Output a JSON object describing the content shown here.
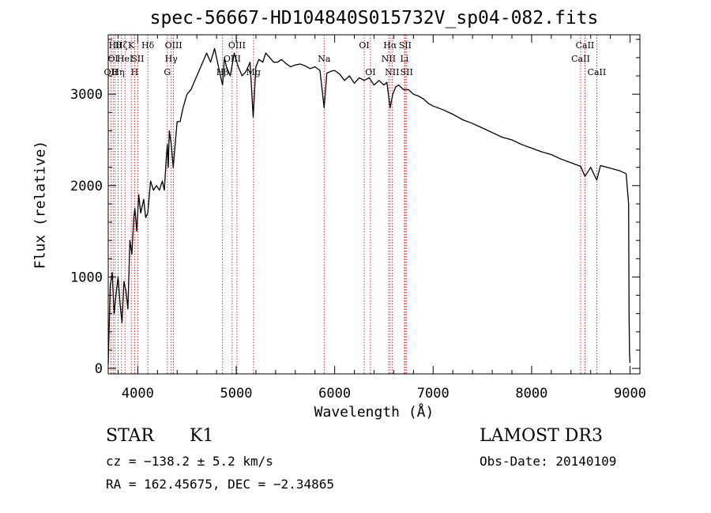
{
  "chart_data": {
    "type": "line",
    "title": "spec-56667-HD104840S015732V_sp04-082.fits",
    "xlabel": "Wavelength (Å)",
    "ylabel": "Flux (relative)",
    "xlim": [
      3700,
      9100
    ],
    "ylim": [
      -60,
      3650
    ],
    "x_ticks": [
      4000,
      5000,
      6000,
      7000,
      8000,
      9000
    ],
    "y_ticks": [
      0,
      1000,
      2000,
      3000
    ],
    "grid": false,
    "series": [
      {
        "x": [
          3700,
          3720,
          3740,
          3760,
          3780,
          3800,
          3820,
          3840,
          3860,
          3880,
          3900,
          3920,
          3940,
          3960,
          3970,
          3990,
          4010,
          4030,
          4060,
          4080,
          4102,
          4130,
          4160,
          4190,
          4220,
          4250,
          4270,
          4290,
          4300,
          4310,
          4320,
          4340,
          4360,
          4380,
          4400,
          4430,
          4460,
          4500,
          4540,
          4580,
          4620,
          4660,
          4700,
          4740,
          4780,
          4820,
          4861,
          4880,
          4900,
          4940,
          4980,
          5020,
          5060,
          5100,
          5140,
          5172,
          5200,
          5230,
          5270,
          5300,
          5340,
          5380,
          5420,
          5460,
          5500,
          5550,
          5600,
          5650,
          5700,
          5750,
          5800,
          5850,
          5893,
          5920,
          5960,
          6000,
          6050,
          6100,
          6150,
          6200,
          6250,
          6300,
          6350,
          6400,
          6450,
          6500,
          6530,
          6563,
          6590,
          6620,
          6650,
          6700,
          6750,
          6800,
          6850,
          6900,
          6950,
          7000,
          7100,
          7200,
          7300,
          7400,
          7500,
          7600,
          7700,
          7800,
          7900,
          8000,
          8100,
          8200,
          8300,
          8400,
          8498,
          8542,
          8600,
          8662,
          8700,
          8800,
          8900,
          8960,
          8985,
          8990,
          8995,
          9000
        ],
        "y": [
          50,
          900,
          1050,
          600,
          820,
          1000,
          700,
          500,
          950,
          850,
          650,
          1400,
          1250,
          1650,
          1750,
          1500,
          1900,
          1700,
          1850,
          1650,
          1700,
          2050,
          1950,
          2000,
          1950,
          2050,
          1950,
          2300,
          2450,
          2200,
          2600,
          2450,
          2200,
          2450,
          2700,
          2700,
          2850,
          3000,
          3050,
          3150,
          3250,
          3350,
          3450,
          3350,
          3500,
          3300,
          3100,
          3400,
          3300,
          3200,
          3450,
          3300,
          3200,
          3250,
          3350,
          2750,
          3300,
          3380,
          3350,
          3450,
          3400,
          3350,
          3350,
          3380,
          3340,
          3300,
          3320,
          3330,
          3310,
          3280,
          3300,
          3260,
          2850,
          3230,
          3250,
          3260,
          3220,
          3150,
          3200,
          3120,
          3180,
          3150,
          3180,
          3100,
          3150,
          3100,
          3130,
          2850,
          3000,
          3080,
          3100,
          3050,
          3050,
          3000,
          2980,
          2950,
          2900,
          2870,
          2830,
          2780,
          2720,
          2680,
          2630,
          2580,
          2530,
          2500,
          2450,
          2410,
          2370,
          2340,
          2290,
          2250,
          2210,
          2100,
          2200,
          2060,
          2220,
          2190,
          2160,
          2130,
          1800,
          600,
          150,
          60
        ]
      }
    ],
    "line_labels": [
      {
        "x": 3727,
        "row": 3,
        "text": "OII"
      },
      {
        "x": 3750,
        "row": 2,
        "text": "OI"
      },
      {
        "x": 3770,
        "row": 1,
        "text": "Hθ"
      },
      {
        "x": 3800,
        "row": 3,
        "text": "Hη"
      },
      {
        "x": 3835,
        "row": 1,
        "text": "Hζ"
      },
      {
        "x": 3870,
        "row": 2,
        "text": "HeI"
      },
      {
        "x": 3934,
        "row": 1,
        "text": "K"
      },
      {
        "x": 3968,
        "row": 3,
        "text": "H"
      },
      {
        "x": 4000,
        "row": 2,
        "text": "SII"
      },
      {
        "x": 4102,
        "row": 1,
        "text": "Hδ"
      },
      {
        "x": 4300,
        "row": 3,
        "text": "G"
      },
      {
        "x": 4340,
        "row": 2,
        "text": "Hγ"
      },
      {
        "x": 4363,
        "row": 1,
        "text": "OIII"
      },
      {
        "x": 4861,
        "row": 3,
        "text": "Hβ"
      },
      {
        "x": 4959,
        "row": 2,
        "text": "OIII"
      },
      {
        "x": 5007,
        "row": 1,
        "text": "OIII"
      },
      {
        "x": 5175,
        "row": 3,
        "text": "Mg"
      },
      {
        "x": 5893,
        "row": 2,
        "text": "Na"
      },
      {
        "x": 6300,
        "row": 1,
        "text": "OI"
      },
      {
        "x": 6363,
        "row": 3,
        "text": "OI"
      },
      {
        "x": 6548,
        "row": 2,
        "text": "NII"
      },
      {
        "x": 6563,
        "row": 1,
        "text": "Hα"
      },
      {
        "x": 6583,
        "row": 3,
        "text": "NII"
      },
      {
        "x": 6708,
        "row": 2,
        "text": "Li"
      },
      {
        "x": 6716,
        "row": 1,
        "text": "SII"
      },
      {
        "x": 6731,
        "row": 3,
        "text": "SII"
      },
      {
        "x": 8498,
        "row": 2,
        "text": "CaII"
      },
      {
        "x": 8542,
        "row": 1,
        "text": "CaII"
      },
      {
        "x": 8662,
        "row": 3,
        "text": "CaII"
      }
    ]
  },
  "info": {
    "class": "STAR",
    "subclass": "K1",
    "cz": "cz = −138.2 ± 5.2 km/s",
    "coords": "RA = 162.45675, DEC =  −2.34865",
    "survey": "LAMOST DR3",
    "obs_date": "Obs-Date: 20140109"
  }
}
